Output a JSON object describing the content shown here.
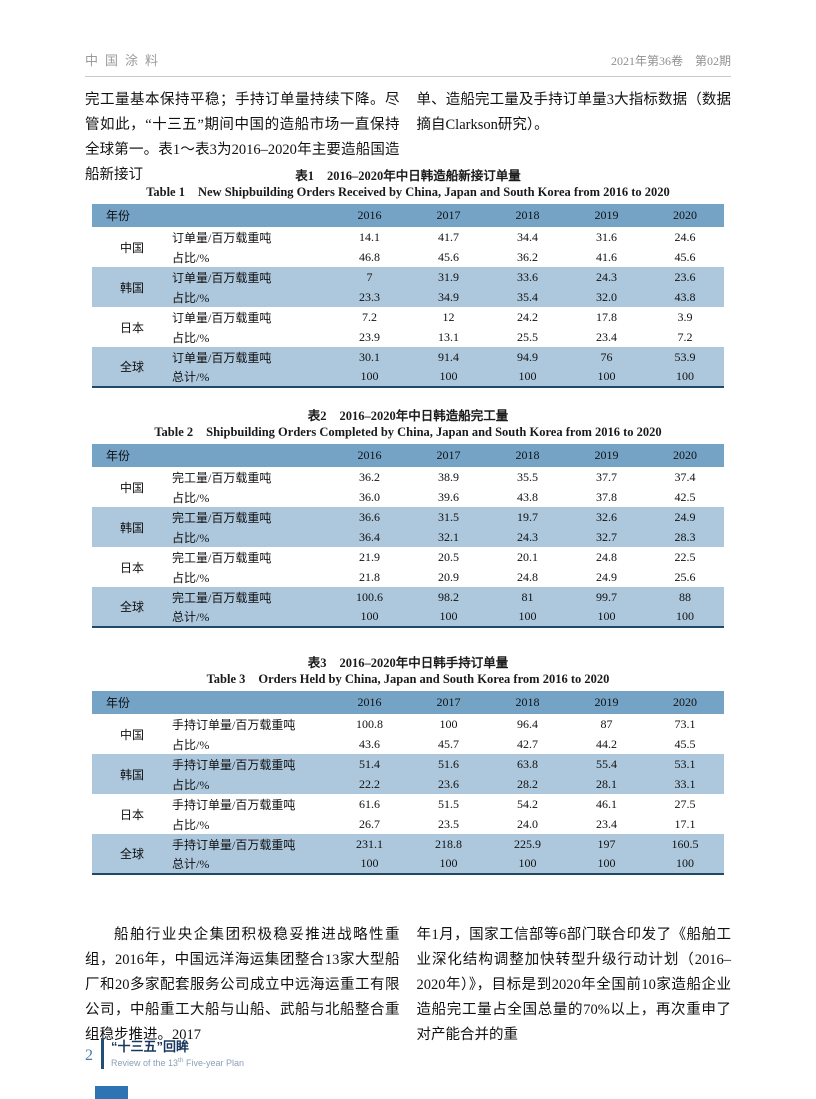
{
  "header": {
    "journal": "中国涂料",
    "issue": "2021年第36卷　第02期"
  },
  "intro": {
    "left": "完工量基本保持平稳；手持订单量持续下降。尽管如此，“十三五”期间中国的造船市场一直保持全球第一。表1～表3为2016–2020年主要造船国造船新接订",
    "right": "单、造船完工量及手持订单量3大指标数据（数据摘自Clarkson研究）。"
  },
  "tables": [
    {
      "label_cn": "表1",
      "title_cn": "2016–2020年中日韩造船新接订单量",
      "label_en": "Table 1",
      "title_en": "New Shipbuilding Orders Received by China, Japan and South Korea from 2016 to 2020",
      "columns": [
        "年份",
        "2016",
        "2017",
        "2018",
        "2019",
        "2020"
      ],
      "groups": [
        {
          "country": "中国",
          "shaded": false,
          "rows": [
            {
              "label": "订单量/百万载重吨",
              "values": [
                "14.1",
                "41.7",
                "34.4",
                "31.6",
                "24.6"
              ]
            },
            {
              "label": "占比/%",
              "values": [
                "46.8",
                "45.6",
                "36.2",
                "41.6",
                "45.6"
              ]
            }
          ]
        },
        {
          "country": "韩国",
          "shaded": true,
          "rows": [
            {
              "label": "订单量/百万载重吨",
              "values": [
                "7",
                "31.9",
                "33.6",
                "24.3",
                "23.6"
              ]
            },
            {
              "label": "占比/%",
              "values": [
                "23.3",
                "34.9",
                "35.4",
                "32.0",
                "43.8"
              ]
            }
          ]
        },
        {
          "country": "日本",
          "shaded": false,
          "rows": [
            {
              "label": "订单量/百万载重吨",
              "values": [
                "7.2",
                "12",
                "24.2",
                "17.8",
                "3.9"
              ]
            },
            {
              "label": "占比/%",
              "values": [
                "23.9",
                "13.1",
                "25.5",
                "23.4",
                "7.2"
              ]
            }
          ]
        },
        {
          "country": "全球",
          "shaded": true,
          "rows": [
            {
              "label": "订单量/百万载重吨",
              "values": [
                "30.1",
                "91.4",
                "94.9",
                "76",
                "53.9"
              ]
            },
            {
              "label": "总计/%",
              "values": [
                "100",
                "100",
                "100",
                "100",
                "100"
              ]
            }
          ]
        }
      ]
    },
    {
      "label_cn": "表2",
      "title_cn": "2016–2020年中日韩造船完工量",
      "label_en": "Table 2",
      "title_en": "Shipbuilding Orders Completed by China, Japan and South Korea from 2016 to 2020",
      "columns": [
        "年份",
        "2016",
        "2017",
        "2018",
        "2019",
        "2020"
      ],
      "groups": [
        {
          "country": "中国",
          "shaded": false,
          "rows": [
            {
              "label": "完工量/百万载重吨",
              "values": [
                "36.2",
                "38.9",
                "35.5",
                "37.7",
                "37.4"
              ]
            },
            {
              "label": "占比/%",
              "values": [
                "36.0",
                "39.6",
                "43.8",
                "37.8",
                "42.5"
              ]
            }
          ]
        },
        {
          "country": "韩国",
          "shaded": true,
          "rows": [
            {
              "label": "完工量/百万载重吨",
              "values": [
                "36.6",
                "31.5",
                "19.7",
                "32.6",
                "24.9"
              ]
            },
            {
              "label": "占比/%",
              "values": [
                "36.4",
                "32.1",
                "24.3",
                "32.7",
                "28.3"
              ]
            }
          ]
        },
        {
          "country": "日本",
          "shaded": false,
          "rows": [
            {
              "label": "完工量/百万载重吨",
              "values": [
                "21.9",
                "20.5",
                "20.1",
                "24.8",
                "22.5"
              ]
            },
            {
              "label": "占比/%",
              "values": [
                "21.8",
                "20.9",
                "24.8",
                "24.9",
                "25.6"
              ]
            }
          ]
        },
        {
          "country": "全球",
          "shaded": true,
          "rows": [
            {
              "label": "完工量/百万载重吨",
              "values": [
                "100.6",
                "98.2",
                "81",
                "99.7",
                "88"
              ]
            },
            {
              "label": "总计/%",
              "values": [
                "100",
                "100",
                "100",
                "100",
                "100"
              ]
            }
          ]
        }
      ]
    },
    {
      "label_cn": "表3",
      "title_cn": "2016–2020年中日韩手持订单量",
      "label_en": "Table 3",
      "title_en": "Orders Held by China, Japan and South Korea from 2016 to 2020",
      "columns": [
        "年份",
        "2016",
        "2017",
        "2018",
        "2019",
        "2020"
      ],
      "groups": [
        {
          "country": "中国",
          "shaded": false,
          "rows": [
            {
              "label": "手持订单量/百万载重吨",
              "values": [
                "100.8",
                "100",
                "96.4",
                "87",
                "73.1"
              ]
            },
            {
              "label": "占比/%",
              "values": [
                "43.6",
                "45.7",
                "42.7",
                "44.2",
                "45.5"
              ]
            }
          ]
        },
        {
          "country": "韩国",
          "shaded": true,
          "rows": [
            {
              "label": "手持订单量/百万载重吨",
              "values": [
                "51.4",
                "51.6",
                "63.8",
                "55.4",
                "53.1"
              ]
            },
            {
              "label": "占比/%",
              "values": [
                "22.2",
                "23.6",
                "28.2",
                "28.1",
                "33.1"
              ]
            }
          ]
        },
        {
          "country": "日本",
          "shaded": false,
          "rows": [
            {
              "label": "手持订单量/百万载重吨",
              "values": [
                "61.6",
                "51.5",
                "54.2",
                "46.1",
                "27.5"
              ]
            },
            {
              "label": "占比/%",
              "values": [
                "26.7",
                "23.5",
                "24.0",
                "23.4",
                "17.1"
              ]
            }
          ]
        },
        {
          "country": "全球",
          "shaded": true,
          "rows": [
            {
              "label": "手持订单量/百万载重吨",
              "values": [
                "231.1",
                "218.8",
                "225.9",
                "197",
                "160.5"
              ]
            },
            {
              "label": "总计/%",
              "values": [
                "100",
                "100",
                "100",
                "100",
                "100"
              ]
            }
          ]
        }
      ]
    }
  ],
  "closing": {
    "left": "船舶行业央企集团积极稳妥推进战略性重组，2016年，中国远洋海运集团整合13家大型船厂和20多家配套服务公司成立中远海运重工有限公司，中船重工大船与山船、武船与北船整合重组稳步推进。2017",
    "right": "年1月，国家工信部等6部门联合印发了《船舶工业深化结构调整加快转型升级行动计划（2016–2020年）》，目标是到2020年全国前10家造船企业造船完工量占全国总量的70%以上，再次重申了对产能合并的重"
  },
  "footer": {
    "page_number": "2",
    "title_cn": "“十三五”回眸",
    "subtitle_before": "Review of the 13",
    "subtitle_sup": "th",
    "subtitle_after": " Five-year Plan"
  },
  "colors": {
    "table_header_band": "#74a3c6",
    "table_shaded_band": "#adc8dd",
    "table_bottom_rule": "#1e4866",
    "edge_tab": "#2e74b5"
  }
}
